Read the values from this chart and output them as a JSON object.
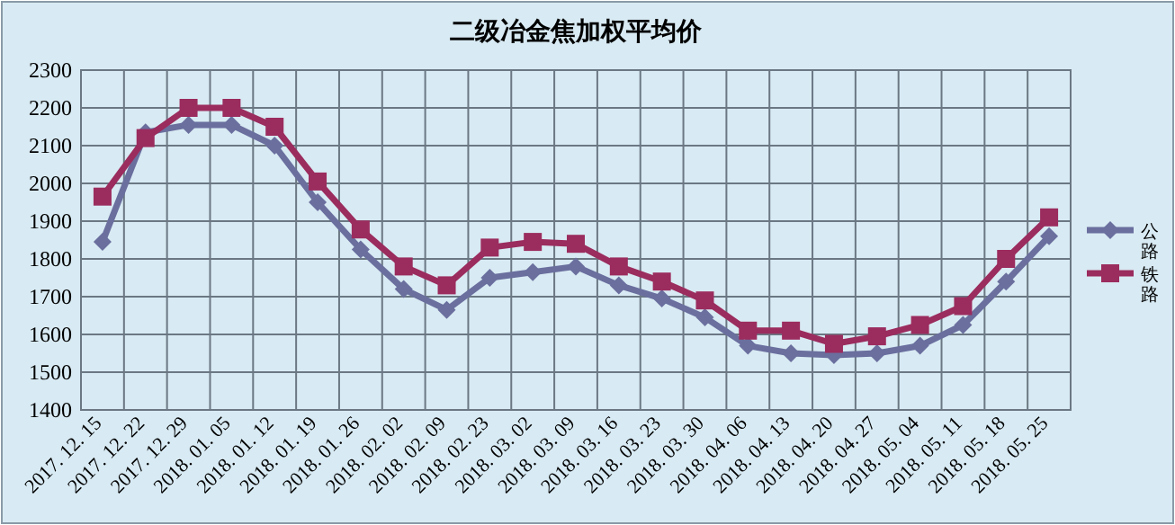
{
  "chart_data": {
    "type": "line",
    "title": "二级冶金焦加权平均价",
    "categories": [
      "2017. 12. 15",
      "2017. 12. 22",
      "2017. 12. 29",
      "2018. 01. 05",
      "2018. 01. 12",
      "2018. 01. 19",
      "2018. 01. 26",
      "2018. 02. 02",
      "2018. 02. 09",
      "2018. 02. 23",
      "2018. 03. 02",
      "2018. 03. 09",
      "2018. 03. 16",
      "2018. 03. 23",
      "2018. 03. 30",
      "2018. 04. 06",
      "2018. 04. 13",
      "2018. 04. 20",
      "2018. 04. 27",
      "2018. 05. 04",
      "2018. 05. 11",
      "2018. 05. 18",
      "2018. 05. 25"
    ],
    "series": [
      {
        "name": "公路",
        "color": "#6a6f9e",
        "marker": "diamond",
        "values": [
          1845,
          2135,
          2155,
          2155,
          2100,
          1950,
          1825,
          1720,
          1665,
          1750,
          1765,
          1780,
          1730,
          1695,
          1645,
          1570,
          1550,
          1545,
          1550,
          1570,
          1625,
          1740,
          1860
        ]
      },
      {
        "name": "铁路",
        "color": "#9b2c5e",
        "marker": "square",
        "values": [
          1965,
          2120,
          2200,
          2200,
          2150,
          2005,
          1878,
          1780,
          1730,
          1830,
          1845,
          1840,
          1780,
          1740,
          1690,
          1610,
          1610,
          1575,
          1595,
          1625,
          1675,
          1800,
          1910
        ]
      }
    ],
    "ylim": [
      1400,
      2300
    ],
    "yticks": [
      1400,
      1500,
      1600,
      1700,
      1800,
      1900,
      2000,
      2100,
      2200,
      2300
    ],
    "grid": true,
    "legend": "right",
    "line_style": "solid"
  }
}
